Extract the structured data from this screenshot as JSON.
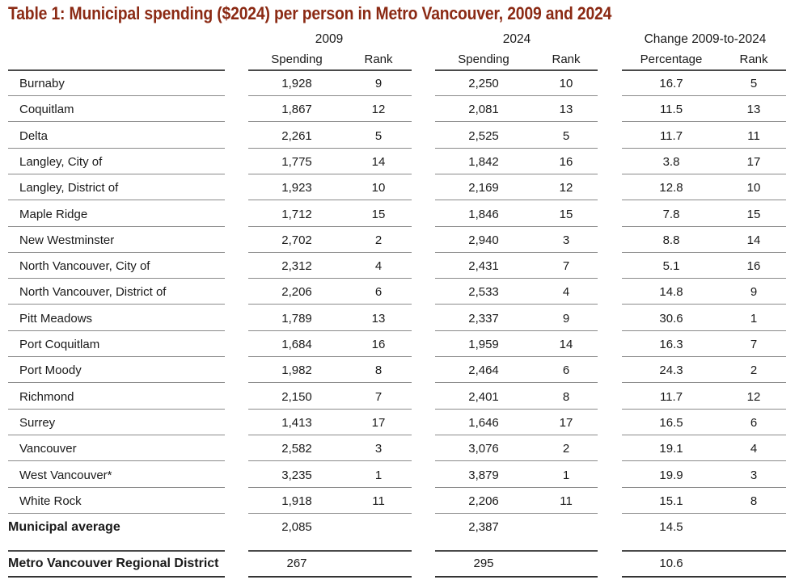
{
  "title": "Table 1: Municipal spending ($2024) per person in Metro Vancouver, 2009 and 2024",
  "groups": [
    "2009",
    "2024",
    "Change 2009-to-2024"
  ],
  "subheaders": [
    "Spending",
    "Rank",
    "Spending",
    "Rank",
    "Percentage",
    "Rank"
  ],
  "rows": [
    {
      "name": "Burnaby",
      "s09": "1,928",
      "r09": "9",
      "s24": "2,250",
      "r24": "10",
      "pct": "16.7",
      "rc": "5"
    },
    {
      "name": "Coquitlam",
      "s09": "1,867",
      "r09": "12",
      "s24": "2,081",
      "r24": "13",
      "pct": "11.5",
      "rc": "13"
    },
    {
      "name": "Delta",
      "s09": "2,261",
      "r09": "5",
      "s24": "2,525",
      "r24": "5",
      "pct": "11.7",
      "rc": "11"
    },
    {
      "name": "Langley, City of",
      "s09": "1,775",
      "r09": "14",
      "s24": "1,842",
      "r24": "16",
      "pct": "3.8",
      "rc": "17"
    },
    {
      "name": "Langley, District of",
      "s09": "1,923",
      "r09": "10",
      "s24": "2,169",
      "r24": "12",
      "pct": "12.8",
      "rc": "10"
    },
    {
      "name": "Maple Ridge",
      "s09": "1,712",
      "r09": "15",
      "s24": "1,846",
      "r24": "15",
      "pct": "7.8",
      "rc": "15"
    },
    {
      "name": "New Westminster",
      "s09": "2,702",
      "r09": "2",
      "s24": "2,940",
      "r24": "3",
      "pct": "8.8",
      "rc": "14"
    },
    {
      "name": "North Vancouver, City of",
      "s09": "2,312",
      "r09": "4",
      "s24": "2,431",
      "r24": "7",
      "pct": "5.1",
      "rc": "16"
    },
    {
      "name": "North Vancouver, District of",
      "s09": "2,206",
      "r09": "6",
      "s24": "2,533",
      "r24": "4",
      "pct": "14.8",
      "rc": "9"
    },
    {
      "name": "Pitt Meadows",
      "s09": "1,789",
      "r09": "13",
      "s24": "2,337",
      "r24": "9",
      "pct": "30.6",
      "rc": "1"
    },
    {
      "name": "Port Coquitlam",
      "s09": "1,684",
      "r09": "16",
      "s24": "1,959",
      "r24": "14",
      "pct": "16.3",
      "rc": "7"
    },
    {
      "name": "Port Moody",
      "s09": "1,982",
      "r09": "8",
      "s24": "2,464",
      "r24": "6",
      "pct": "24.3",
      "rc": "2"
    },
    {
      "name": "Richmond",
      "s09": "2,150",
      "r09": "7",
      "s24": "2,401",
      "r24": "8",
      "pct": "11.7",
      "rc": "12"
    },
    {
      "name": "Surrey",
      "s09": "1,413",
      "r09": "17",
      "s24": "1,646",
      "r24": "17",
      "pct": "16.5",
      "rc": "6"
    },
    {
      "name": "Vancouver",
      "s09": "2,582",
      "r09": "3",
      "s24": "3,076",
      "r24": "2",
      "pct": "19.1",
      "rc": "4"
    },
    {
      "name": "West Vancouver*",
      "s09": "3,235",
      "r09": "1",
      "s24": "3,879",
      "r24": "1",
      "pct": "19.9",
      "rc": "3"
    },
    {
      "name": "White Rock",
      "s09": "1,918",
      "r09": "11",
      "s24": "2,206",
      "r24": "11",
      "pct": "15.1",
      "rc": "8"
    }
  ],
  "average": {
    "name": "Municipal average",
    "s09": "2,085",
    "s24": "2,387",
    "pct": "14.5"
  },
  "regional": {
    "name": "Metro Vancouver Regional District",
    "s09": "267",
    "s24": "295",
    "pct": "10.6"
  },
  "colors": {
    "title": "#8b2a14"
  }
}
